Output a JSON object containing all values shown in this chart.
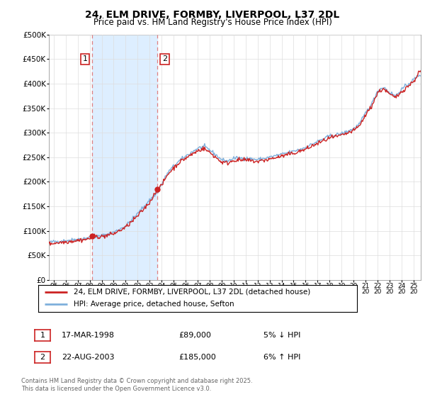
{
  "title": "24, ELM DRIVE, FORMBY, LIVERPOOL, L37 2DL",
  "subtitle": "Price paid vs. HM Land Registry's House Price Index (HPI)",
  "ylim": [
    0,
    500000
  ],
  "yticks": [
    0,
    50000,
    100000,
    150000,
    200000,
    250000,
    300000,
    350000,
    400000,
    450000,
    500000
  ],
  "ytick_labels": [
    "£0",
    "£50K",
    "£100K",
    "£150K",
    "£200K",
    "£250K",
    "£300K",
    "£350K",
    "£400K",
    "£450K",
    "£500K"
  ],
  "hpi_color": "#7fb0dc",
  "price_color": "#cc2222",
  "annotation_box_color": "#cc2222",
  "vline_color": "#e08080",
  "grid_color": "#dddddd",
  "span_color": "#ddeeff",
  "background_color": "#ffffff",
  "sale1_year": 1998.21,
  "sale1_price": 89000,
  "sale1_label": "1",
  "sale1_date": "17-MAR-1998",
  "sale1_price_str": "£89,000",
  "sale1_hpi_str": "5% ↓ HPI",
  "sale2_year": 2003.65,
  "sale2_price": 185000,
  "sale2_label": "2",
  "sale2_date": "22-AUG-2003",
  "sale2_price_str": "£185,000",
  "sale2_hpi_str": "6% ↑ HPI",
  "legend_line1": "24, ELM DRIVE, FORMBY, LIVERPOOL, L37 2DL (detached house)",
  "legend_line2": "HPI: Average price, detached house, Sefton",
  "footer": "Contains HM Land Registry data © Crown copyright and database right 2025.\nThis data is licensed under the Open Government Licence v3.0.",
  "x_start": 1994.6,
  "x_end": 2025.6,
  "x_tick_years": [
    1995,
    1996,
    1997,
    1998,
    1999,
    2000,
    2001,
    2002,
    2003,
    2004,
    2005,
    2006,
    2007,
    2008,
    2009,
    2010,
    2011,
    2012,
    2013,
    2014,
    2015,
    2016,
    2017,
    2018,
    2019,
    2020,
    2021,
    2022,
    2023,
    2024,
    2025
  ]
}
